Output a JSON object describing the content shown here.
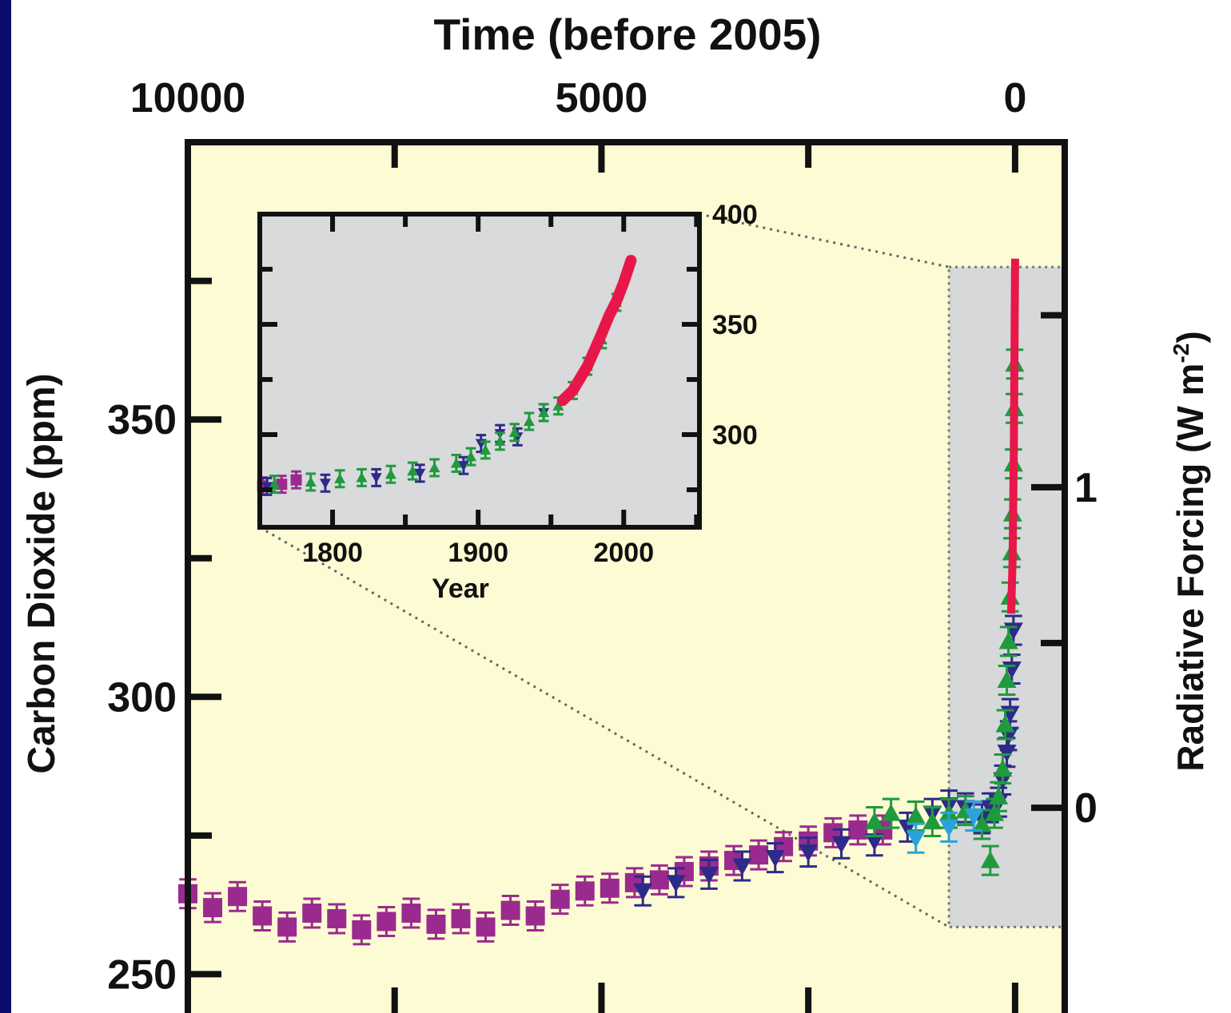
{
  "chart_data": {
    "type": "scatter",
    "title": "",
    "colors": {
      "frame_bg": "#0b0b6e",
      "plot_bg": "#fdfbd3",
      "inset_bg": "#d8dadc",
      "highlight_bg": "#d6d8da",
      "axis": "#111111"
    },
    "main": {
      "top_axis": {
        "label": "Time (before 2005)",
        "range": [
          10000,
          -600
        ],
        "ticks": [
          10000,
          5000,
          0
        ],
        "tick_labels": [
          "10000",
          "5000",
          "0"
        ],
        "minor_ticks": [
          7500,
          2500
        ]
      },
      "left_axis": {
        "label": "Carbon Dioxide (ppm)",
        "range": [
          243,
          400
        ],
        "ticks": [
          250,
          300,
          350
        ],
        "tick_labels": [
          "250",
          "300",
          "350"
        ],
        "minor_ticks": [
          275,
          325,
          375
        ]
      },
      "right_axis": {
        "label_main": "Radiative Forcing (W m",
        "label_sup": "-2",
        "label_close": ")",
        "tick_labels": [
          "0",
          "1"
        ],
        "tick_ppm": [
          280,
          337.8
        ],
        "minor_tick_ppm": [
          309.7,
          368.8
        ]
      },
      "highlight_range": {
        "x": [
          800,
          -600
        ],
        "y": [
          258.5,
          377.5
        ]
      },
      "series": [
        {
          "name": "",
          "color": "#9b2a8e",
          "marker": "square",
          "points": [
            [
              10000,
              264.5
            ],
            [
              9700,
              262.0
            ],
            [
              9400,
              264.0
            ],
            [
              9100,
              260.5
            ],
            [
              8800,
              258.5
            ],
            [
              8500,
              261.0
            ],
            [
              8200,
              260.0
            ],
            [
              7900,
              258.0
            ],
            [
              7600,
              259.5
            ],
            [
              7300,
              261.0
            ],
            [
              7000,
              259.0
            ],
            [
              6700,
              260.0
            ],
            [
              6400,
              258.5
            ],
            [
              6100,
              261.5
            ],
            [
              5800,
              260.5
            ],
            [
              5500,
              263.5
            ],
            [
              5200,
              265.0
            ],
            [
              4900,
              265.5
            ],
            [
              4600,
              266.5
            ],
            [
              4300,
              267.0
            ],
            [
              4000,
              268.5
            ],
            [
              3700,
              269.5
            ],
            [
              3400,
              270.5
            ],
            [
              3100,
              271.5
            ],
            [
              2800,
              273.0
            ],
            [
              2500,
              274.0
            ],
            [
              2200,
              275.5
            ],
            [
              1900,
              276.0
            ],
            [
              1600,
              276.0
            ]
          ]
        },
        {
          "name": "",
          "color": "#2e2a8a",
          "marker": "triangle-down",
          "points": [
            [
              4500,
              265.0
            ],
            [
              4100,
              266.5
            ],
            [
              3700,
              268.0
            ],
            [
              3300,
              269.5
            ],
            [
              2900,
              271.0
            ],
            [
              2500,
              272.0
            ],
            [
              2100,
              273.5
            ],
            [
              1700,
              274.0
            ],
            [
              1300,
              276.5
            ],
            [
              1000,
              279.0
            ],
            [
              800,
              280.5
            ],
            [
              600,
              280.0
            ],
            [
              400,
              278.0
            ],
            [
              300,
              280.0
            ],
            [
              200,
              281.0
            ],
            [
              150,
              285.0
            ],
            [
              100,
              290.0
            ],
            [
              80,
              293.0
            ],
            [
              60,
              297.0
            ],
            [
              40,
              305.0
            ],
            [
              20,
              312.0
            ]
          ]
        },
        {
          "name": "",
          "color": "#1f9a3c",
          "marker": "triangle-up",
          "points": [
            [
              1700,
              277.5
            ],
            [
              1500,
              279.0
            ],
            [
              1200,
              278.5
            ],
            [
              1000,
              277.5
            ],
            [
              800,
              279.0
            ],
            [
              600,
              279.5
            ],
            [
              400,
              277.0
            ],
            [
              300,
              270.5
            ],
            [
              250,
              279.0
            ],
            [
              200,
              282.0
            ],
            [
              150,
              287.0
            ],
            [
              120,
              295.0
            ],
            [
              100,
              303.0
            ],
            [
              80,
              310.0
            ],
            [
              60,
              318.0
            ],
            [
              40,
              326.0
            ],
            [
              30,
              333.0
            ],
            [
              20,
              342.0
            ],
            [
              10,
              352.0
            ],
            [
              5,
              360.0
            ]
          ]
        },
        {
          "name": "",
          "color": "#2aa3d8",
          "marker": "triangle-down",
          "points": [
            [
              1200,
              274.5
            ],
            [
              800,
              276.5
            ],
            [
              500,
              278.5
            ]
          ]
        }
      ],
      "instrumental": {
        "name": "",
        "color": "#e8174a",
        "points": [
          [
            48,
            315.0
          ],
          [
            30,
            325.0
          ],
          [
            15,
            345.0
          ],
          [
            0,
            379.0
          ]
        ]
      }
    },
    "inset": {
      "x_axis": {
        "label": "Year",
        "range": [
          1750,
          2052
        ],
        "ticks": [
          1800,
          1900,
          2000
        ],
        "tick_labels": [
          "1800",
          "1900",
          "2000"
        ],
        "minor_ticks": [
          1750,
          1850,
          1950,
          2050
        ]
      },
      "y_axis": {
        "range": [
          258,
          400
        ],
        "ticks": [
          300,
          350,
          400
        ],
        "tick_labels": [
          "300",
          "350",
          "400"
        ],
        "minor_ticks": [
          275,
          325,
          375
        ]
      },
      "series": [
        {
          "name": "",
          "color": "#9b2a8e",
          "marker": "square",
          "points": [
            [
              1752,
              276.8
            ],
            [
              1765,
              277.5
            ],
            [
              1775,
              279.5
            ]
          ]
        },
        {
          "name": "",
          "color": "#2e2a8a",
          "marker": "triangle-down",
          "points": [
            [
              1755,
              276.5
            ],
            [
              1795,
              278.0
            ],
            [
              1830,
              280.5
            ],
            [
              1860,
              282.5
            ],
            [
              1890,
              286.0
            ],
            [
              1902,
              296.0
            ],
            [
              1915,
              300.5
            ],
            [
              1927,
              299.0
            ],
            [
              1945,
              310.0
            ]
          ]
        },
        {
          "name": "",
          "color": "#1f9a3c",
          "marker": "triangle-up",
          "points": [
            [
              1760,
              277.5
            ],
            [
              1785,
              278.5
            ],
            [
              1805,
              280.0
            ],
            [
              1820,
              280.5
            ],
            [
              1840,
              282.0
            ],
            [
              1855,
              283.5
            ],
            [
              1870,
              285.0
            ],
            [
              1885,
              287.0
            ],
            [
              1895,
              290.0
            ],
            [
              1905,
              293.0
            ],
            [
              1915,
              297.0
            ],
            [
              1925,
              301.0
            ],
            [
              1935,
              306.0
            ],
            [
              1945,
              310.0
            ],
            [
              1955,
              313.0
            ],
            [
              1965,
              320.0
            ],
            [
              1975,
              331.0
            ],
            [
              1985,
              343.0
            ],
            [
              1995,
              360.0
            ]
          ]
        }
      ],
      "instrumental": {
        "name": "",
        "color": "#e8174a",
        "points": [
          [
            1958,
            315.5
          ],
          [
            1965,
            320.0
          ],
          [
            1970,
            325.5
          ],
          [
            1975,
            331.0
          ],
          [
            1980,
            338.5
          ],
          [
            1985,
            346.0
          ],
          [
            1990,
            354.0
          ],
          [
            1995,
            360.5
          ],
          [
            2000,
            369.0
          ],
          [
            2005,
            379.0
          ]
        ]
      }
    }
  }
}
